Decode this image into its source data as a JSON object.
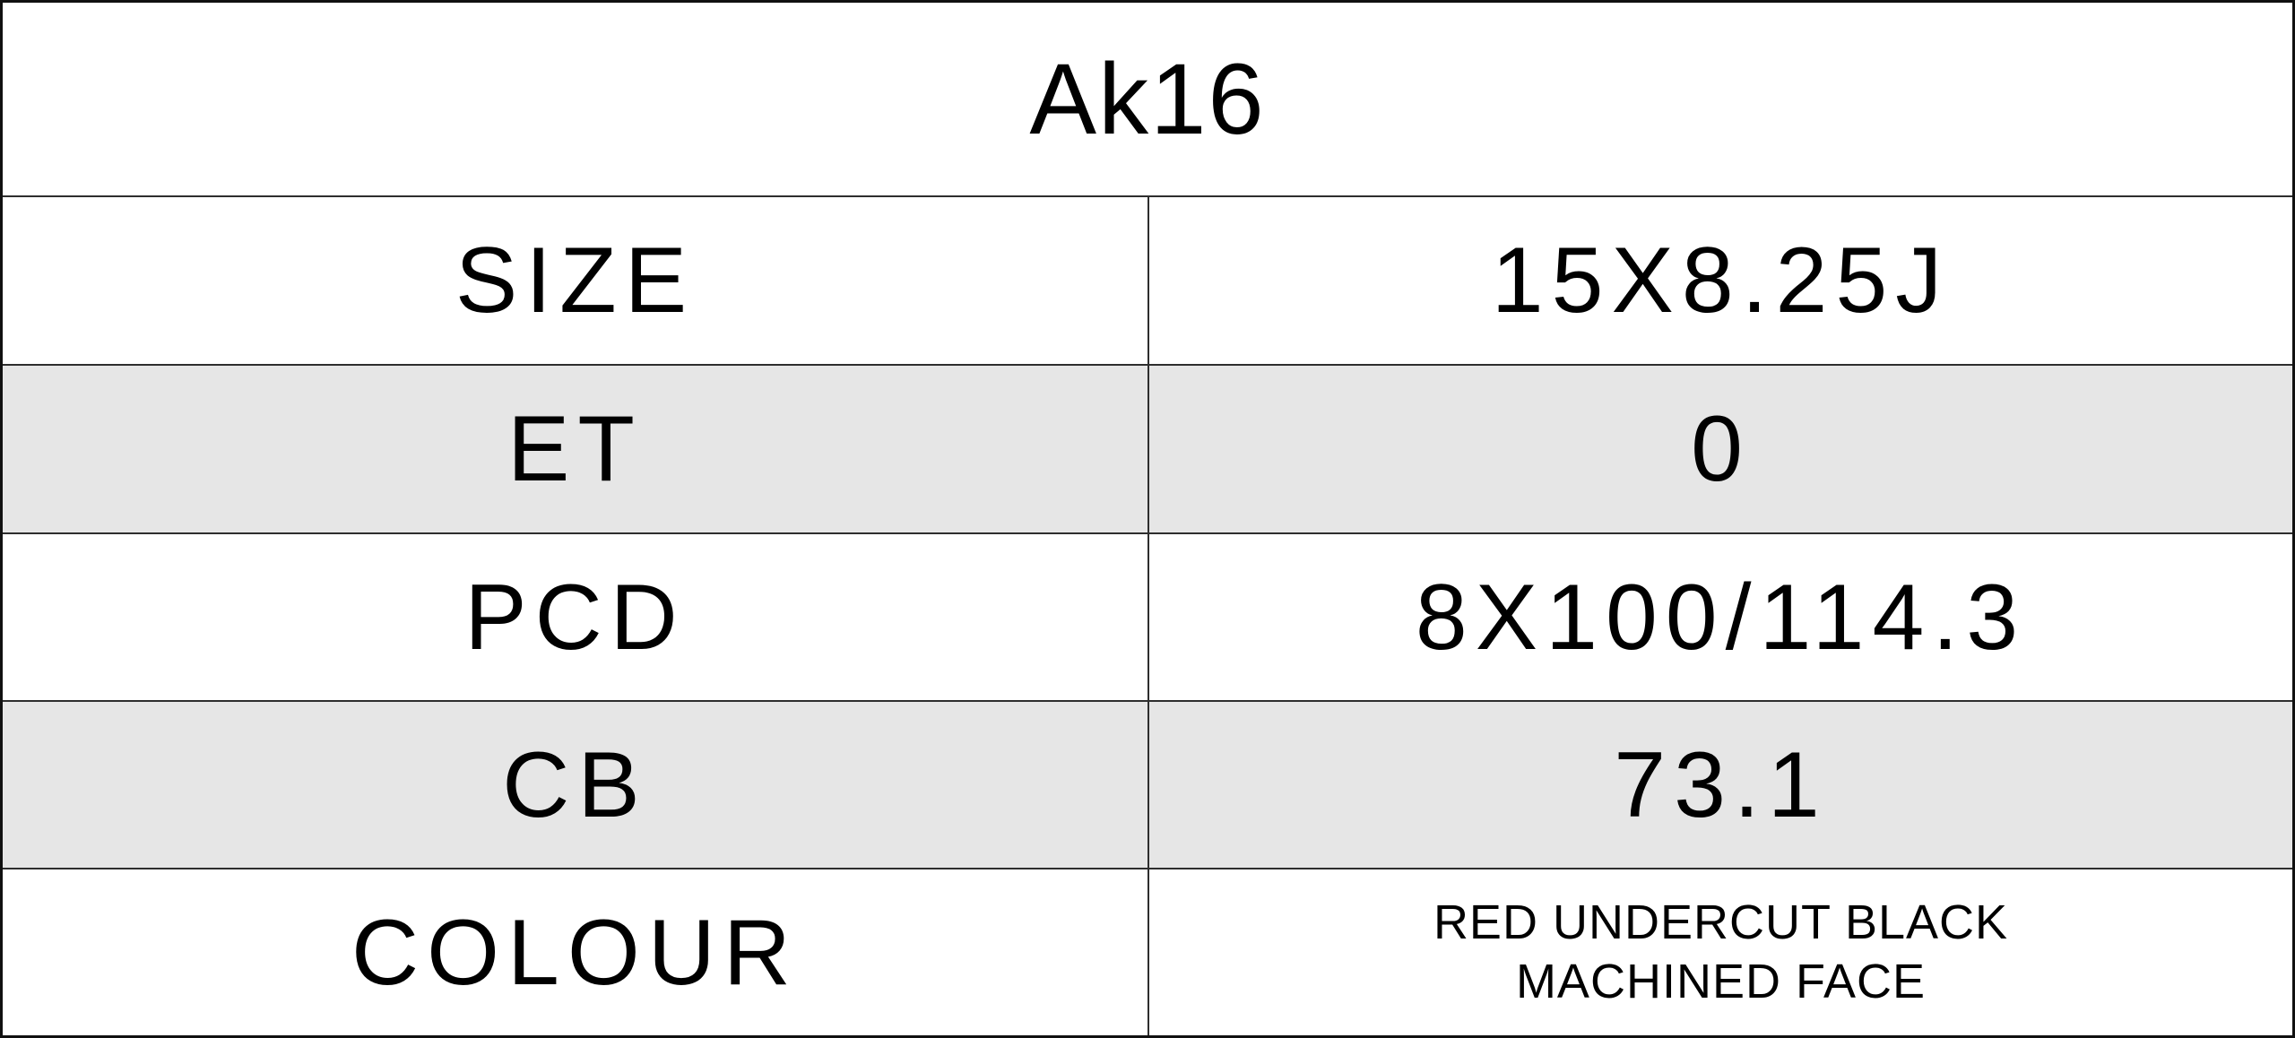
{
  "title": "Ak16",
  "rows": [
    {
      "label": "SIZE",
      "value": "15X8.25J",
      "shaded": false
    },
    {
      "label": "ET",
      "value": "0",
      "shaded": true
    },
    {
      "label": "PCD",
      "value": "8X100/114.3",
      "shaded": false
    },
    {
      "label": "CB",
      "value": "73.1",
      "shaded": true
    },
    {
      "label": "COLOUR",
      "value_lines": [
        "RED UNDERCUT BLACK",
        "MACHINED FACE"
      ],
      "shaded": false
    }
  ],
  "colors": {
    "shaded_row": "#e6e6e6",
    "grid_line": "#2e2e2e",
    "outer_border": "#111111",
    "text": "#000000",
    "background": "#ffffff"
  }
}
